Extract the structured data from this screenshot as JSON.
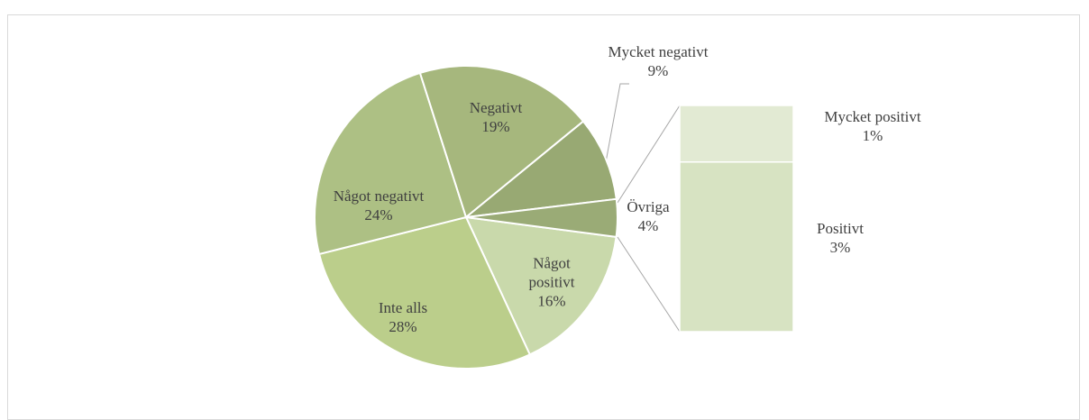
{
  "chart_data": [
    {
      "type": "pie",
      "categories": [
        "Något positivt",
        "Inte alls",
        "Något negativt",
        "Negativt",
        "Mycket negativt",
        "Övriga"
      ],
      "values": [
        16,
        28,
        24,
        19,
        9,
        4
      ],
      "value_labels": [
        "16%",
        "28%",
        "24%",
        "19%",
        "9%",
        "4%"
      ],
      "colors": [
        "#c9d9ab",
        "#bbce8b",
        "#adc084",
        "#a6b77d",
        "#98a973",
        "#9aab76"
      ]
    },
    {
      "type": "bar",
      "categories": [
        "Mycket positivt",
        "Positivt"
      ],
      "values": [
        1,
        3
      ],
      "value_labels": [
        "1%",
        "3%"
      ],
      "colors": [
        "#e2ead3",
        "#d7e3c2"
      ]
    }
  ]
}
